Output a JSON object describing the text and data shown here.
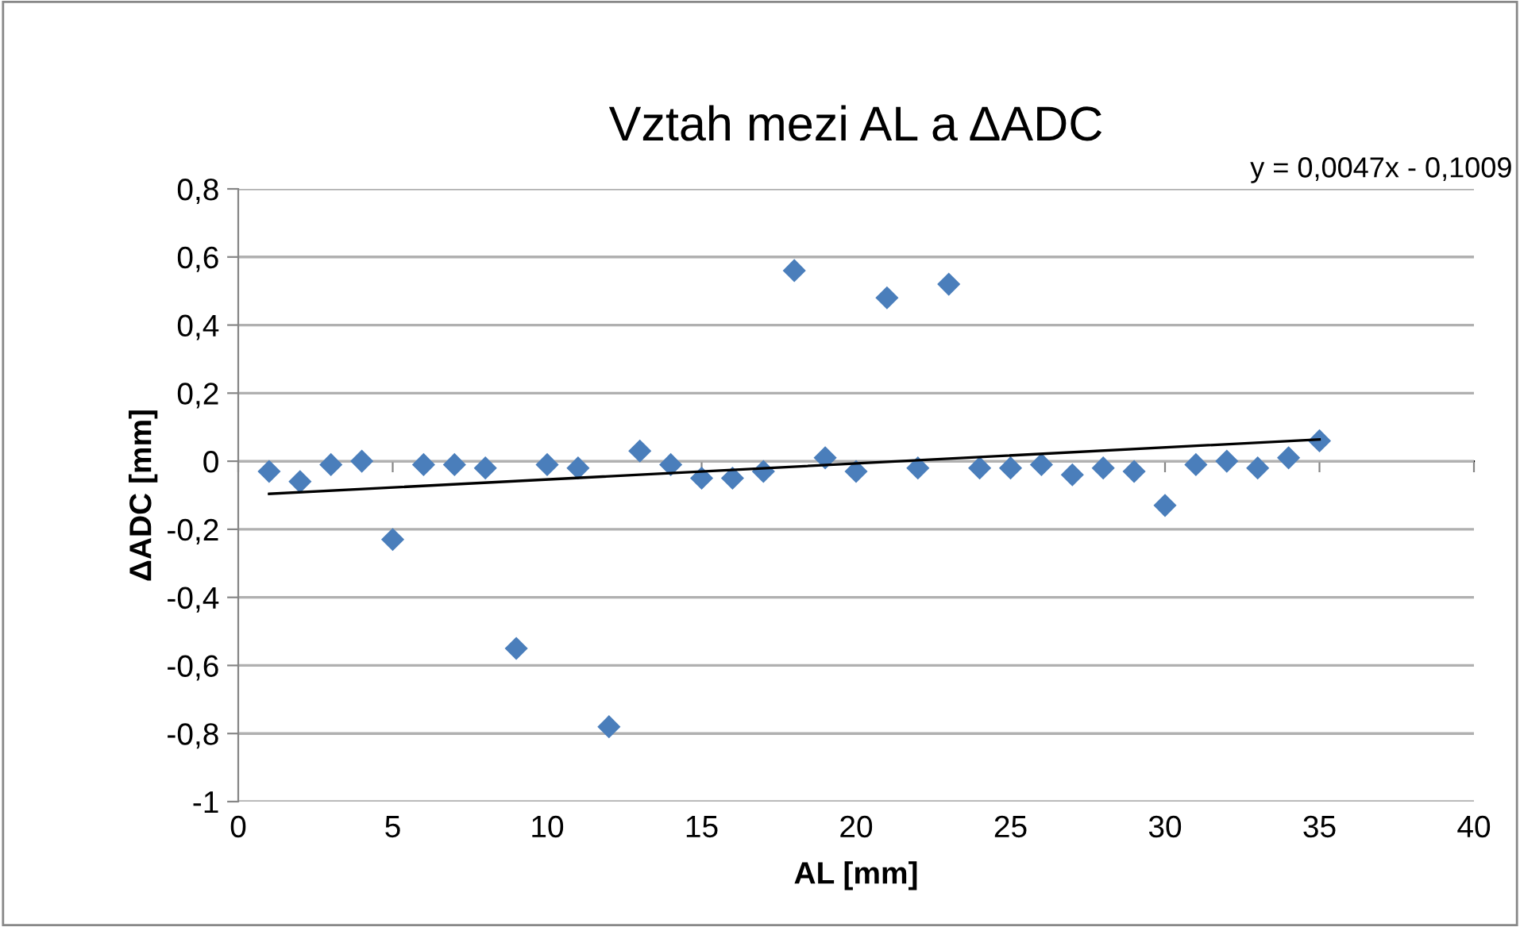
{
  "chart_data": {
    "type": "scatter",
    "title": "Vztah mezi AL a ΔADC",
    "xlabel": "AL [mm]",
    "ylabel": "ΔADC [mm]",
    "x": [
      1,
      2,
      3,
      4,
      5,
      6,
      7,
      8,
      9,
      10,
      11,
      12,
      13,
      14,
      15,
      16,
      17,
      18,
      19,
      20,
      21,
      22,
      23,
      24,
      25,
      26,
      27,
      28,
      29,
      30,
      31,
      32,
      33,
      34,
      35
    ],
    "series": [
      {
        "color": "#4a7ebb",
        "marker": "diamond",
        "values": [
          -0.03,
          -0.06,
          -0.01,
          0.0,
          -0.23,
          -0.01,
          -0.01,
          -0.02,
          -0.55,
          -0.01,
          -0.02,
          -0.78,
          0.03,
          -0.01,
          -0.05,
          -0.05,
          -0.03,
          0.56,
          0.01,
          -0.03,
          0.48,
          -0.02,
          0.52,
          -0.02,
          -0.02,
          -0.01,
          -0.04,
          -0.02,
          -0.03,
          -0.13,
          -0.01,
          0.0,
          -0.02,
          0.01,
          0.06
        ]
      },
      {
        "type": "line",
        "color": "#000000",
        "x": [
          1,
          35
        ],
        "values": [
          -0.096,
          0.064
        ]
      }
    ],
    "annotations": [
      "y = 0,0047x - 0,1009"
    ],
    "xlim": [
      0,
      40
    ],
    "ylim": [
      -1,
      0.8
    ],
    "xticks": [
      0,
      5,
      10,
      15,
      20,
      25,
      30,
      35,
      40
    ],
    "yticks": [
      {
        "value": -1,
        "label": "-1"
      },
      {
        "value": -0.8,
        "label": "-0,8"
      },
      {
        "value": -0.6,
        "label": "-0,6"
      },
      {
        "value": -0.4,
        "label": "-0,4"
      },
      {
        "value": -0.2,
        "label": "-0,2"
      },
      {
        "value": 0,
        "label": "0"
      },
      {
        "value": 0.2,
        "label": "0,2"
      },
      {
        "value": 0.4,
        "label": "0,4"
      },
      {
        "value": 0.6,
        "label": "0,6"
      },
      {
        "value": 0.8,
        "label": "0,8"
      }
    ],
    "grid": "y",
    "legend": false
  }
}
